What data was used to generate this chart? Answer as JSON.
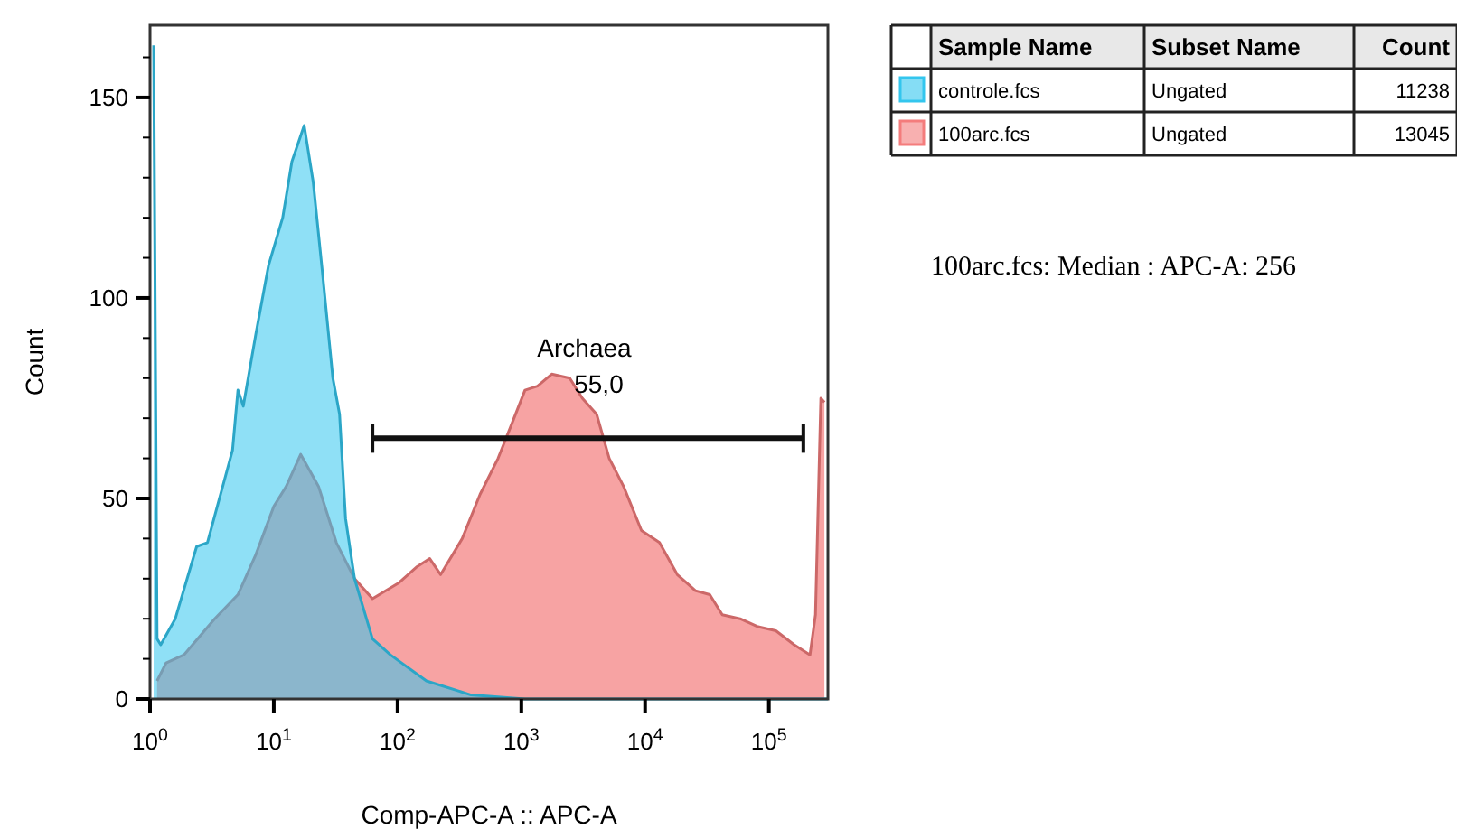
{
  "chart_data": {
    "type": "area",
    "xlabel": "Comp-APC-A :: APC-A",
    "ylabel": "Count",
    "log": "x",
    "xlim": [
      1,
      300000
    ],
    "ylim": [
      0,
      168
    ],
    "xticks": [
      {
        "value": 1,
        "label": "10$^{0}$"
      },
      {
        "value": 10,
        "label": "10$^{1}$"
      },
      {
        "value": 100,
        "label": "10$^{2}$"
      },
      {
        "value": 1000,
        "label": "10$^{3}$"
      },
      {
        "value": 10000,
        "label": "10$^{4}$"
      },
      {
        "value": 100000,
        "label": "10$^{5}$"
      }
    ],
    "yticks": [
      0,
      {
        "value": 10,
        "label": null
      },
      {
        "value": 20,
        "label": null
      },
      {
        "value": 30,
        "label": null
      },
      {
        "value": 40,
        "label": null
      },
      50,
      {
        "value": 60,
        "label": null
      },
      {
        "value": 70,
        "label": null
      },
      {
        "value": 80,
        "label": null
      },
      {
        "value": 90,
        "label": null
      },
      100,
      {
        "value": 110,
        "label": null
      },
      {
        "value": 120,
        "label": null
      },
      {
        "value": 130,
        "label": null
      },
      {
        "value": 140,
        "label": null
      },
      150,
      {
        "value": 160,
        "label": null
      }
    ],
    "legend": "top right",
    "grid": false,
    "series": [
      {
        "name": "100arc.fcs",
        "color": "#f47c7c",
        "x": [
          1.14,
          1.35,
          1.88,
          3.33,
          5.13,
          7.16,
          10,
          12.6,
          16.5,
          23,
          32,
          44.9,
          62.7,
          103,
          144,
          182,
          223,
          333,
          464,
          649,
          847,
          1070,
          1350,
          1760,
          2460,
          3110,
          4060,
          5130,
          6700,
          9350,
          13060,
          18200,
          25500,
          33300,
          42000,
          58600,
          81800,
          114000,
          160000,
          215000,
          238000,
          263000,
          281000
        ],
        "values": [
          4.5,
          9,
          11,
          20,
          26,
          36,
          48,
          53,
          61,
          53,
          39,
          30,
          25,
          29,
          33,
          35,
          31,
          40,
          51,
          60,
          69,
          77,
          78,
          81,
          80,
          75,
          71,
          60,
          53,
          42,
          39,
          31,
          27,
          26,
          21,
          20,
          18,
          17,
          13.5,
          11,
          21,
          75,
          74
        ]
      },
      {
        "name": "controle.fcs",
        "color": "#33c6ee",
        "x": [
          1.07,
          1.14,
          1.22,
          1.6,
          2.38,
          2.91,
          4.64,
          5.13,
          5.67,
          7.16,
          9.05,
          11.8,
          14,
          17.6,
          20.8,
          24.6,
          30,
          34,
          38,
          44.9,
          62.7,
          87.5,
          171,
          393,
          1070,
          300000
        ],
        "values": [
          163,
          15,
          13.5,
          20,
          38,
          39,
          62,
          77,
          73,
          91,
          108,
          120,
          134,
          143,
          129,
          107,
          80,
          71,
          45,
          30,
          15,
          11,
          4.5,
          1,
          0,
          0
        ]
      },
      {
        "type": "line",
        "color": "#111111",
        "x": [
          62.7,
          190000
        ],
        "values": [
          65,
          65
        ]
      }
    ],
    "annotations": [
      "Archaea",
      "55,0",
      "Sample Name",
      "Subset Name",
      "Count",
      "Ungated",
      "11238",
      "Ungated",
      "13045",
      "100arc.fcs: Median : APC-A: 256"
    ]
  }
}
